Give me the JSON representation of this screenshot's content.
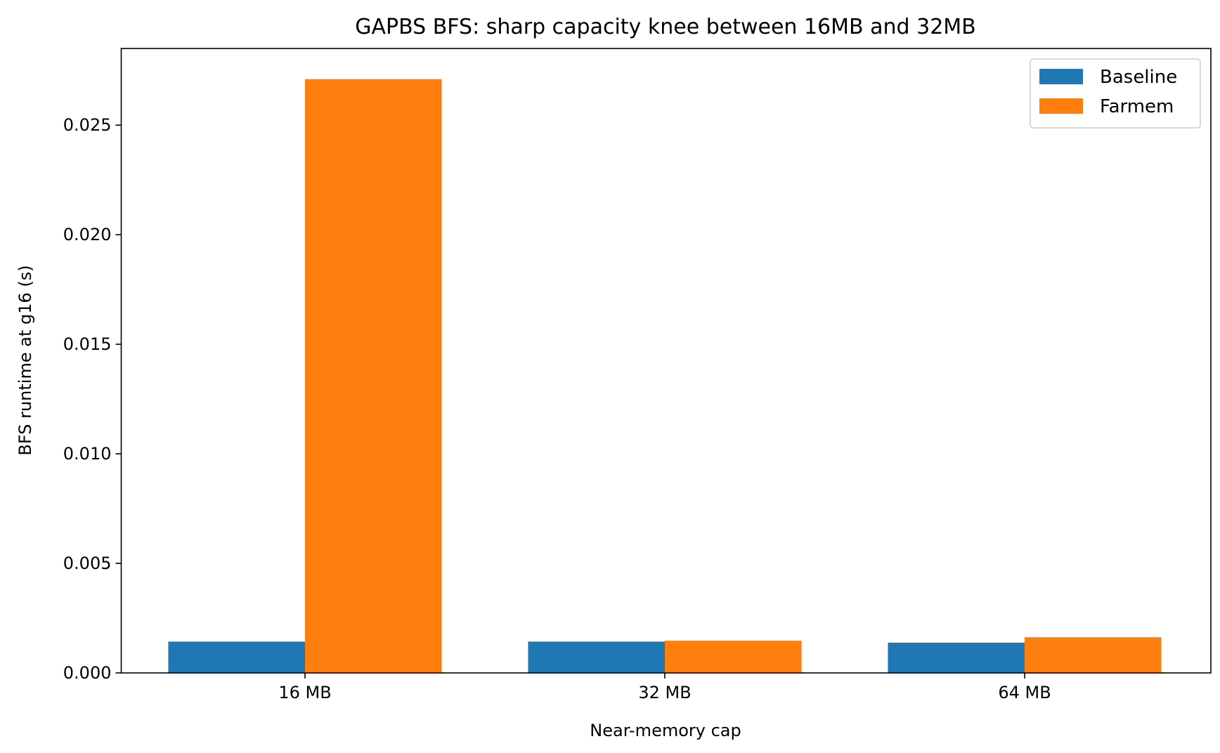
{
  "chart_data": {
    "type": "bar",
    "title": "GAPBS BFS: sharp capacity knee between 16MB and 32MB",
    "xlabel": "Near-memory cap",
    "ylabel": "BFS runtime at g16 (s)",
    "categories": [
      "16 MB",
      "32 MB",
      "64 MB"
    ],
    "series": [
      {
        "name": "Baseline",
        "color": "#1f77b4",
        "values": [
          0.00143,
          0.00143,
          0.00138
        ]
      },
      {
        "name": "Farmem",
        "color": "#ff7f0e",
        "values": [
          0.0271,
          0.00147,
          0.00163
        ]
      }
    ],
    "ylim": [
      0,
      0.0285
    ],
    "yticks": [
      "0.000",
      "0.005",
      "0.010",
      "0.015",
      "0.020",
      "0.025"
    ],
    "grid": false,
    "legend": "top-right"
  }
}
